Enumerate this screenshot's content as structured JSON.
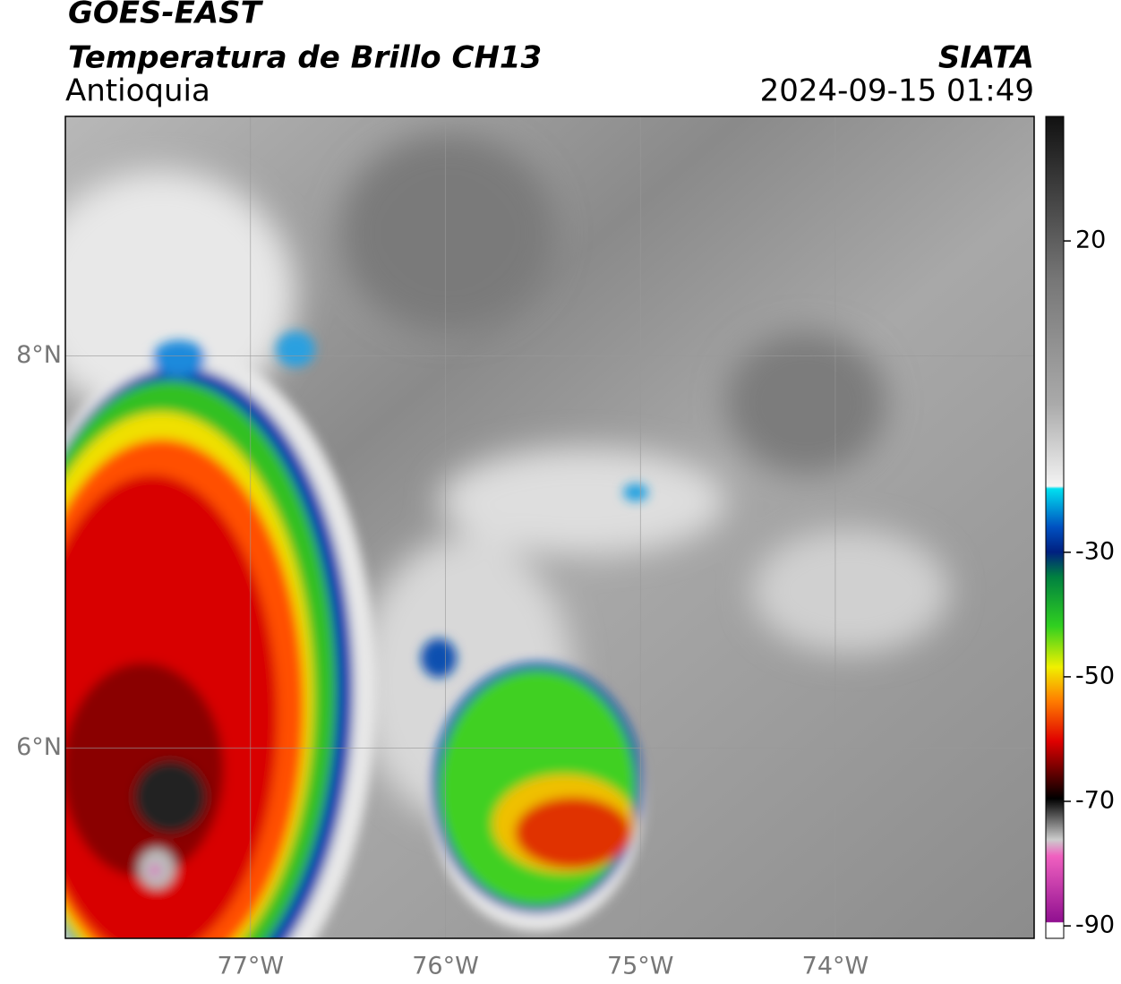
{
  "header": {
    "satellite": "GOES-EAST",
    "product": "Temperatura de Brillo CH13",
    "region": "Antioquia",
    "source": "SIATA",
    "datetime": "2024-09-15 01:49"
  },
  "map": {
    "xlim": [
      -77.95,
      -72.98
    ],
    "ylim": [
      5.03,
      9.22
    ],
    "xticks": [
      {
        "value": -77,
        "label": "77°W"
      },
      {
        "value": -76,
        "label": "76°W"
      },
      {
        "value": -75,
        "label": "75°W"
      },
      {
        "value": -74,
        "label": "74°W"
      }
    ],
    "yticks": [
      {
        "value": 6,
        "label": "6°N"
      },
      {
        "value": 8,
        "label": "8°N"
      }
    ]
  },
  "colorbar": {
    "lim": [
      -92,
      40
    ],
    "ticks": [
      20,
      -30,
      -50,
      -70,
      -90
    ]
  }
}
